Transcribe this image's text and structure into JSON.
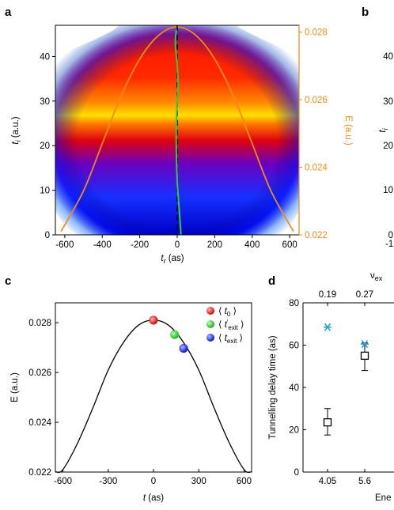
{
  "panel_labels": {
    "a": "a",
    "b": "b",
    "c": "c",
    "d": "d"
  },
  "chart_data": [
    {
      "panel": "a",
      "type": "heatmap",
      "xlabel": "t",
      "xlabel_sub": "r",
      "xlabel_unit": " (as)",
      "ylabel": "t",
      "ylabel_sub": "i",
      "ylabel_unit": " (a.u.)",
      "y2label": "E (a.u.)",
      "xlim": [
        -650,
        650
      ],
      "ylim": [
        0,
        47
      ],
      "y2lim": [
        0.022,
        0.0282
      ],
      "xticks": [
        "-600",
        "-400",
        "-200",
        "0",
        "200",
        "400",
        "600"
      ],
      "xtick_values": [
        -600,
        -400,
        -200,
        0,
        200,
        400,
        600
      ],
      "yticks": [
        "0",
        "10",
        "20",
        "30",
        "40"
      ],
      "ytick_values": [
        0,
        10,
        20,
        30,
        40
      ],
      "y2ticks": [
        "0.022",
        "0.024",
        "0.026",
        "0.028"
      ],
      "y2tick_values": [
        0.022,
        0.024,
        0.026,
        0.028
      ],
      "field_curve": {
        "color": "#f08a18",
        "x": [
          -620,
          -500,
          -400,
          -300,
          -200,
          -100,
          0,
          100,
          200,
          300,
          400,
          500,
          620
        ],
        "y": [
          0.0221,
          0.0233,
          0.0247,
          0.0261,
          0.0272,
          0.0279,
          0.02815,
          0.0279,
          0.0272,
          0.0261,
          0.0247,
          0.0233,
          0.0221
        ]
      },
      "green_curve": {
        "color": "#2ecc40",
        "x": [
          20,
          12,
          0,
          -5,
          -4,
          0,
          5,
          0,
          -10,
          -5
        ],
        "y": [
          0,
          5,
          12,
          20,
          26,
          30,
          34,
          38,
          43,
          46
        ]
      },
      "dashed_line": {
        "x": 0,
        "color": "#000000"
      },
      "colormap": [
        "#ffffff",
        "#e8f2ff",
        "#1a55ff",
        "#0000dd",
        "#dd0000",
        "#ff1a00",
        "#ff7a00",
        "#ffe000"
      ]
    },
    {
      "panel": "b",
      "type": "heatmap",
      "ylabel": "t",
      "ylabel_sub": "i",
      "ylabel_unit": " (a.u.)",
      "yticks": [
        "40",
        "30",
        "20",
        "10",
        "0"
      ],
      "xtick_partial": "-1"
    },
    {
      "panel": "c",
      "type": "line",
      "xlabel": "t",
      "xlabel_unit": " (as)",
      "ylabel": "E (a.u.)",
      "xlim": [
        -650,
        650
      ],
      "ylim": [
        0.022,
        0.0288
      ],
      "xticks": [
        "-600",
        "-300",
        "0",
        "300",
        "600"
      ],
      "xtick_values": [
        -600,
        -300,
        0,
        300,
        600
      ],
      "yticks": [
        "0.022",
        "0.024",
        "0.026",
        "0.028"
      ],
      "ytick_values": [
        0.022,
        0.024,
        0.026,
        0.028
      ],
      "x": [
        -650,
        -600,
        -500,
        -400,
        -300,
        -200,
        -100,
        0,
        100,
        200,
        300,
        400,
        500,
        600,
        650
      ],
      "y": [
        0.02201,
        0.0221,
        0.0232,
        0.0246,
        0.0261,
        0.0272,
        0.0279,
        0.02811,
        0.0279,
        0.0272,
        0.0261,
        0.0246,
        0.0232,
        0.0221,
        0.02201
      ],
      "markers": [
        {
          "x": 0,
          "y": 0.0281,
          "color": "#ee1111",
          "label": "t",
          "label_sub": "0",
          "label_sup": ""
        },
        {
          "x": 140,
          "y": 0.02752,
          "color": "#22dd22",
          "label": "t",
          "label_sub": "exit",
          "label_sup": "′"
        },
        {
          "x": 200,
          "y": 0.02697,
          "color": "#1122ee",
          "label": "t",
          "label_sub": "exit",
          "label_sup": ""
        }
      ]
    },
    {
      "panel": "d",
      "type": "scatter",
      "ylabel": "Tunnelling delay time (as)",
      "ylim": [
        0,
        80
      ],
      "yticks": [
        "0",
        "20",
        "40",
        "60",
        "80"
      ],
      "ytick_values": [
        0,
        20,
        40,
        60,
        80
      ],
      "xticks": [
        "4.05",
        "5.6"
      ],
      "xtick_values": [
        4.05,
        5.6
      ],
      "top_label": "ν",
      "top_label_sub": "ex",
      "top_ticks": [
        "0.19",
        "0.27"
      ],
      "xlabel_partial": "Ene",
      "series": [
        {
          "marker": "square",
          "color": "#000000",
          "x": [
            4.05,
            5.6
          ],
          "y": [
            23.5,
            55
          ],
          "yerr_low": [
            6,
            7
          ],
          "yerr_high": [
            6.5,
            6
          ]
        },
        {
          "marker": "asterisk",
          "color": "#2a9fe0",
          "x": [
            4.05,
            5.6
          ],
          "y": [
            68.5,
            60.5
          ]
        }
      ]
    }
  ]
}
